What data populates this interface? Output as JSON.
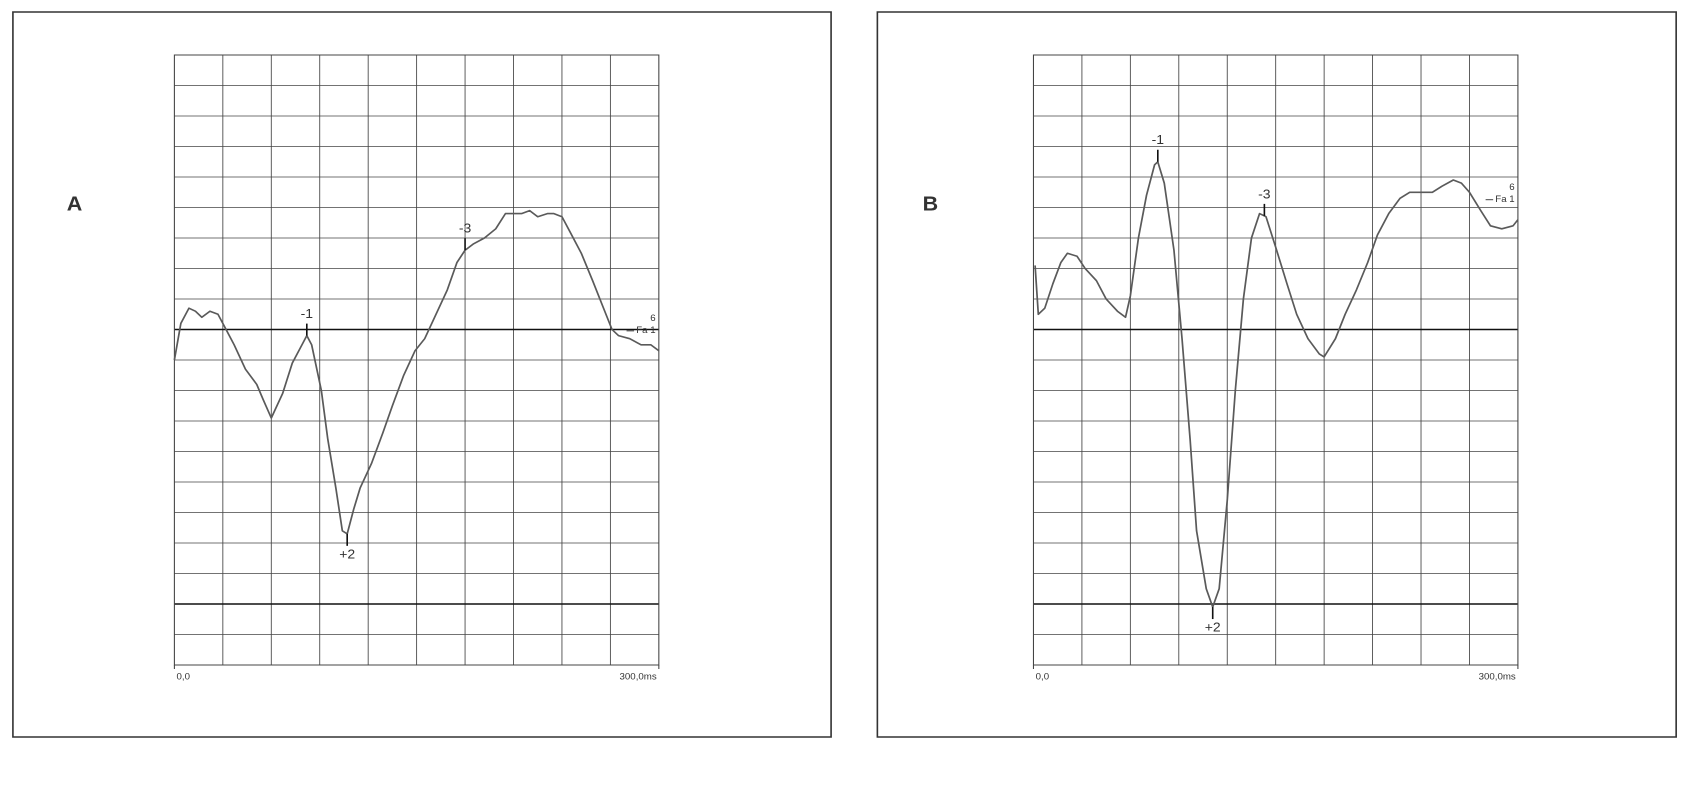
{
  "chart_data": [
    {
      "type": "line",
      "panel_label": "A",
      "color": "#5a5a5a",
      "xlim": [
        0,
        300
      ],
      "ylim": [
        -11,
        9
      ],
      "xticks": [
        {
          "value": 0,
          "label": "0,0"
        },
        {
          "value": 300,
          "label": "300,0ms"
        }
      ],
      "xgrid": [
        30,
        60,
        90,
        120,
        150,
        180,
        210,
        240,
        270
      ],
      "ygrid": [
        -10,
        -8,
        -7,
        -6,
        -5,
        -4,
        -3,
        -2,
        -1,
        1,
        2,
        3,
        4,
        5,
        6,
        7,
        8
      ],
      "ythick": [
        0,
        -9
      ],
      "x": [
        0,
        4,
        9,
        13,
        17,
        22,
        27,
        32,
        37,
        44,
        51,
        55,
        60,
        67,
        73,
        79,
        82,
        85,
        91,
        95,
        100,
        104,
        107,
        111,
        115,
        122,
        129,
        135,
        142,
        149,
        155,
        162,
        169,
        175,
        180,
        185,
        192,
        199,
        205,
        211,
        215,
        220,
        225,
        231,
        235,
        240,
        245,
        252,
        259,
        265,
        271,
        275,
        282,
        289,
        295,
        300
      ],
      "values": [
        -1.0,
        0.2,
        0.7,
        0.6,
        0.4,
        0.6,
        0.5,
        0,
        -0.5,
        -1.3,
        -1.8,
        -2.3,
        -2.9,
        -2.1,
        -1.1,
        -0.5,
        -0.2,
        -0.5,
        -2.0,
        -3.6,
        -5.2,
        -6.6,
        -6.7,
        -5.9,
        -5.2,
        -4.4,
        -3.4,
        -2.5,
        -1.5,
        -0.7,
        -0.3,
        0.5,
        1.3,
        2.2,
        2.6,
        2.8,
        3.0,
        3.3,
        3.8,
        3.8,
        3.8,
        3.9,
        3.7,
        3.8,
        3.8,
        3.7,
        3.2,
        2.5,
        1.6,
        0.8,
        0,
        -0.2,
        -0.3,
        -0.5,
        -0.5,
        -0.7
      ],
      "peaks": [
        {
          "label": "-1",
          "x": 82,
          "side": "above"
        },
        {
          "label": "+2",
          "x": 107,
          "side": "below"
        },
        {
          "label": "-3",
          "x": 180,
          "side": "above"
        }
      ],
      "trace_number": "6",
      "trace_name": "Fa 1"
    },
    {
      "type": "line",
      "panel_label": "B",
      "color": "#5a5a5a",
      "xlim": [
        0,
        300
      ],
      "ylim": [
        -11,
        9
      ],
      "xticks": [
        {
          "value": 0,
          "label": "0,0"
        },
        {
          "value": 300,
          "label": "300,0ms"
        }
      ],
      "xgrid": [
        30,
        60,
        90,
        120,
        150,
        180,
        210,
        240,
        270
      ],
      "ygrid": [
        -10,
        -8,
        -7,
        -6,
        -5,
        -4,
        -3,
        -2,
        -1,
        1,
        2,
        3,
        4,
        5,
        6,
        7,
        8
      ],
      "ythick": [
        0,
        -9
      ],
      "x": [
        1,
        3,
        7,
        12,
        17,
        21,
        27,
        32,
        39,
        45,
        52,
        57,
        60,
        65,
        70,
        75,
        77,
        81,
        87,
        92,
        97,
        101,
        107,
        111,
        115,
        120,
        125,
        130,
        135,
        140,
        144,
        150,
        157,
        163,
        170,
        177,
        180,
        187,
        193,
        200,
        207,
        213,
        220,
        227,
        233,
        240,
        247,
        253,
        260,
        265,
        270,
        277,
        283,
        290,
        297,
        300
      ],
      "values": [
        2.1,
        0.5,
        0.7,
        1.5,
        2.2,
        2.5,
        2.4,
        2.0,
        1.6,
        1.0,
        0.6,
        0.4,
        1.1,
        3.0,
        4.4,
        5.4,
        5.5,
        4.8,
        2.6,
        -0.3,
        -3.6,
        -6.6,
        -8.5,
        -9.1,
        -8.5,
        -5.6,
        -2.0,
        1.0,
        3.0,
        3.8,
        3.7,
        2.7,
        1.5,
        0.5,
        -0.3,
        -0.8,
        -0.9,
        -0.3,
        0.5,
        1.3,
        2.2,
        3.1,
        3.8,
        4.3,
        4.5,
        4.5,
        4.5,
        4.7,
        4.9,
        4.8,
        4.5,
        3.9,
        3.4,
        3.3,
        3.4,
        3.6
      ],
      "peaks": [
        {
          "label": "-1",
          "x": 77,
          "side": "above"
        },
        {
          "label": "+2",
          "x": 111,
          "side": "below"
        },
        {
          "label": "-3",
          "x": 143,
          "side": "above"
        }
      ],
      "trace_number": "6",
      "trace_name": "Fa 1"
    }
  ]
}
